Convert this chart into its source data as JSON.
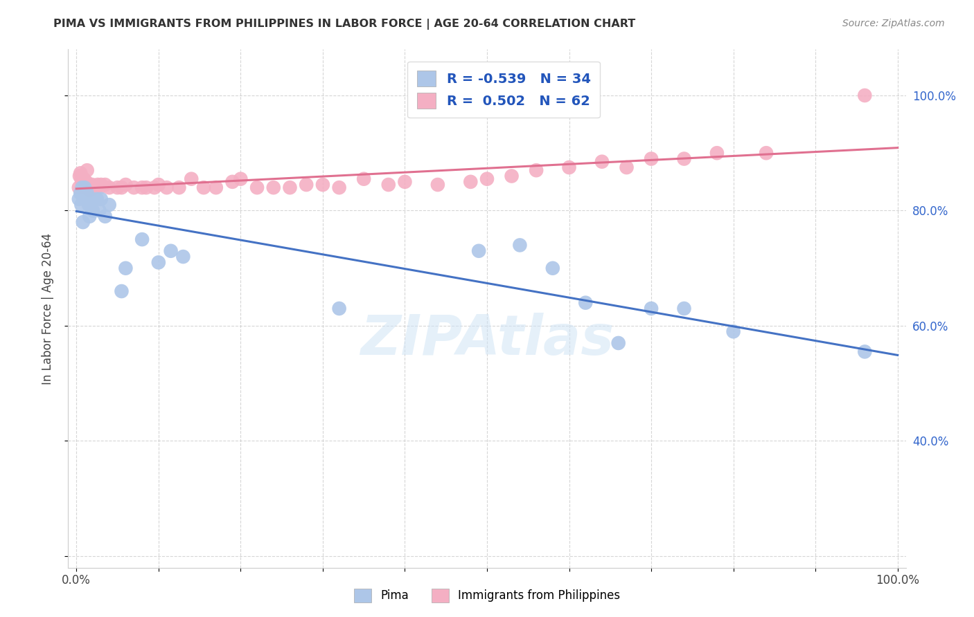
{
  "title": "PIMA VS IMMIGRANTS FROM PHILIPPINES IN LABOR FORCE | AGE 20-64 CORRELATION CHART",
  "source": "Source: ZipAtlas.com",
  "ylabel": "In Labor Force | Age 20-64",
  "pima_color": "#adc6e8",
  "phil_color": "#f4afc3",
  "pima_line_color": "#4472c4",
  "phil_line_color": "#e07090",
  "legend_R_color": "#2255bb",
  "pima_R": "-0.539",
  "pima_N": "34",
  "phil_R": "0.502",
  "phil_N": "62",
  "watermark": "ZIPAtlas",
  "pima_x": [
    0.003,
    0.005,
    0.006,
    0.007,
    0.008,
    0.009,
    0.01,
    0.011,
    0.013,
    0.015,
    0.016,
    0.018,
    0.02,
    0.025,
    0.028,
    0.03,
    0.035,
    0.04,
    0.055,
    0.06,
    0.08,
    0.1,
    0.115,
    0.13,
    0.32,
    0.49,
    0.54,
    0.58,
    0.62,
    0.66,
    0.7,
    0.74,
    0.8,
    0.96
  ],
  "pima_y": [
    0.82,
    0.83,
    0.81,
    0.84,
    0.78,
    0.835,
    0.84,
    0.82,
    0.83,
    0.81,
    0.79,
    0.82,
    0.8,
    0.82,
    0.8,
    0.82,
    0.79,
    0.81,
    0.66,
    0.7,
    0.75,
    0.71,
    0.73,
    0.72,
    0.63,
    0.73,
    0.74,
    0.7,
    0.64,
    0.57,
    0.63,
    0.63,
    0.59,
    0.555
  ],
  "phil_x": [
    0.003,
    0.004,
    0.005,
    0.006,
    0.007,
    0.008,
    0.009,
    0.01,
    0.011,
    0.012,
    0.013,
    0.014,
    0.015,
    0.016,
    0.017,
    0.018,
    0.019,
    0.02,
    0.022,
    0.024,
    0.026,
    0.028,
    0.03,
    0.035,
    0.04,
    0.05,
    0.055,
    0.06,
    0.07,
    0.08,
    0.085,
    0.095,
    0.1,
    0.11,
    0.125,
    0.14,
    0.155,
    0.17,
    0.19,
    0.2,
    0.22,
    0.24,
    0.26,
    0.28,
    0.3,
    0.32,
    0.35,
    0.38,
    0.4,
    0.44,
    0.48,
    0.5,
    0.53,
    0.56,
    0.6,
    0.64,
    0.67,
    0.7,
    0.74,
    0.78,
    0.84,
    0.96
  ],
  "phil_y": [
    0.84,
    0.86,
    0.865,
    0.855,
    0.85,
    0.845,
    0.855,
    0.85,
    0.84,
    0.85,
    0.87,
    0.84,
    0.84,
    0.835,
    0.84,
    0.84,
    0.845,
    0.84,
    0.84,
    0.84,
    0.845,
    0.84,
    0.845,
    0.845,
    0.84,
    0.84,
    0.84,
    0.845,
    0.84,
    0.84,
    0.84,
    0.84,
    0.845,
    0.84,
    0.84,
    0.855,
    0.84,
    0.84,
    0.85,
    0.855,
    0.84,
    0.84,
    0.84,
    0.845,
    0.845,
    0.84,
    0.855,
    0.845,
    0.85,
    0.845,
    0.85,
    0.855,
    0.86,
    0.87,
    0.875,
    0.885,
    0.875,
    0.89,
    0.89,
    0.9,
    0.9,
    1.0
  ],
  "xlim": [
    -0.01,
    1.01
  ],
  "ylim": [
    0.18,
    1.08
  ],
  "yticks": [
    0.2,
    0.4,
    0.6,
    0.8,
    1.0
  ],
  "ytick_labels_left": [
    "",
    "",
    "60.0%",
    "80.0%",
    "100.0%"
  ],
  "ytick_labels_right": [
    "40.0%",
    "60.0%",
    "80.0%",
    "100.0%"
  ],
  "yticks_right": [
    0.4,
    0.6,
    0.8,
    1.0
  ],
  "xticks": [
    0.0,
    0.1,
    0.2,
    0.3,
    0.4,
    0.5,
    0.6,
    0.7,
    0.8,
    0.9,
    1.0
  ],
  "xtick_labels": [
    "0.0%",
    "",
    "",
    "",
    "",
    "",
    "",
    "",
    "",
    "",
    "100.0%"
  ]
}
